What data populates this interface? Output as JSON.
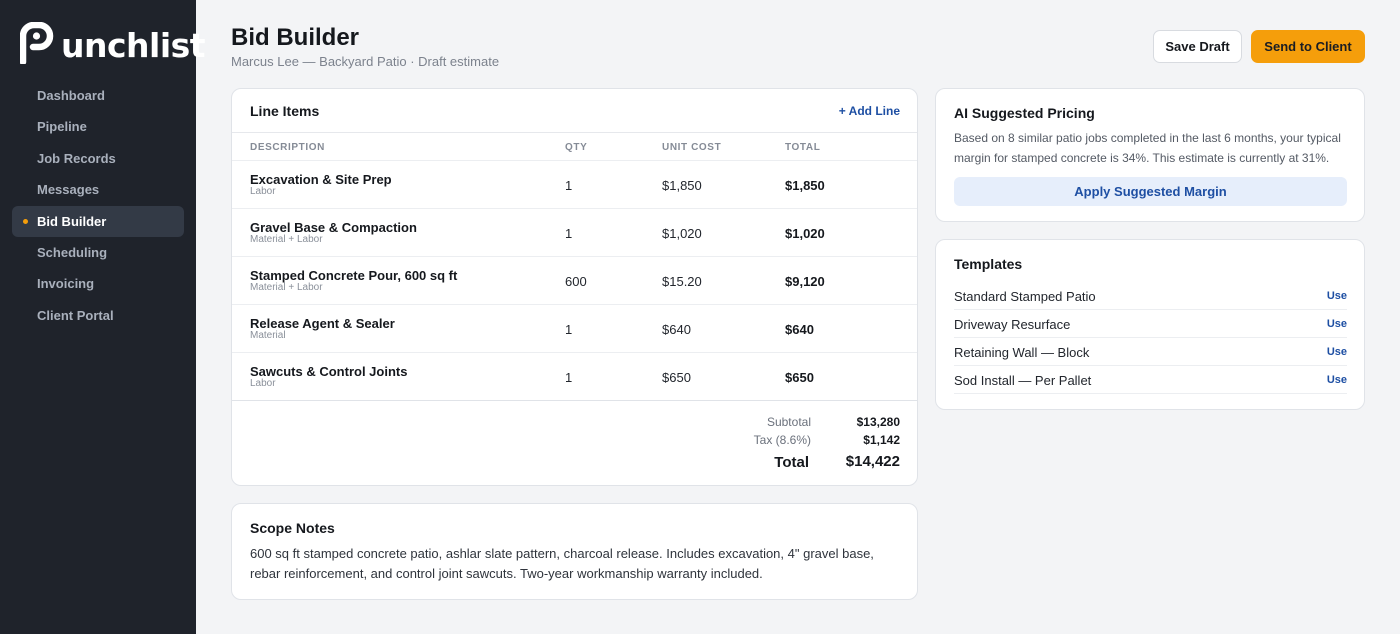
{
  "app": {
    "logo_text": "unchlist"
  },
  "sidebar": {
    "items": [
      {
        "label": "Dashboard",
        "active": false
      },
      {
        "label": "Pipeline",
        "active": false
      },
      {
        "label": "Job Records",
        "active": false
      },
      {
        "label": "Messages",
        "active": false
      },
      {
        "label": "Bid Builder",
        "active": true
      },
      {
        "label": "Scheduling",
        "active": false
      },
      {
        "label": "Invoicing",
        "active": false
      },
      {
        "label": "Client Portal",
        "active": false
      }
    ]
  },
  "header": {
    "title": "Bid Builder",
    "subtitle": "Marcus Lee — Backyard Patio · Draft estimate",
    "save_draft_label": "Save Draft",
    "send_label": "Send to Client"
  },
  "line_items": {
    "title": "Line Items",
    "add_label": "+ Add Line",
    "columns": [
      "DESCRIPTION",
      "QTY",
      "UNIT COST",
      "TOTAL"
    ],
    "rows": [
      {
        "name": "Excavation & Site Prep",
        "type": "Labor",
        "qty": "1",
        "unit": "$1,850",
        "total": "$1,850"
      },
      {
        "name": "Gravel Base & Compaction",
        "type": "Material + Labor",
        "qty": "1",
        "unit": "$1,020",
        "total": "$1,020"
      },
      {
        "name": "Stamped Concrete Pour, 600 sq ft",
        "type": "Material + Labor",
        "qty": "600",
        "unit": "$15.20",
        "total": "$9,120"
      },
      {
        "name": "Release Agent & Sealer",
        "type": "Material",
        "qty": "1",
        "unit": "$640",
        "total": "$640"
      },
      {
        "name": "Sawcuts & Control Joints",
        "type": "Labor",
        "qty": "1",
        "unit": "$650",
        "total": "$650"
      }
    ],
    "subtotal_label": "Subtotal",
    "subtotal": "$13,280",
    "tax_label": "Tax (8.6%)",
    "tax": "$1,142",
    "total_label": "Total",
    "total": "$14,422"
  },
  "scope": {
    "title": "Scope Notes",
    "body": "600 sq ft stamped concrete patio, ashlar slate pattern, charcoal release. Includes excavation, 4\" gravel base, rebar reinforcement, and control joint sawcuts. Two-year workmanship warranty included."
  },
  "ai_pricing": {
    "title": "AI Suggested Pricing",
    "body": "Based on 8 similar patio jobs completed in the last 6 months, your typical margin for stamped concrete is 34%. This estimate is currently at 31%.",
    "apply_label": "Apply Suggested Margin"
  },
  "templates": {
    "title": "Templates",
    "use_label": "Use",
    "items": [
      "Standard Stamped Patio",
      "Driveway Resurface",
      "Retaining Wall — Block",
      "Sod Install — Per Pallet"
    ]
  },
  "colors": {
    "accent": "#f59e0b",
    "link": "#1e4fa3",
    "sidebar": "#1f232b"
  },
  "icons": {
    "logo": "punchlist-logo-p-mark"
  }
}
